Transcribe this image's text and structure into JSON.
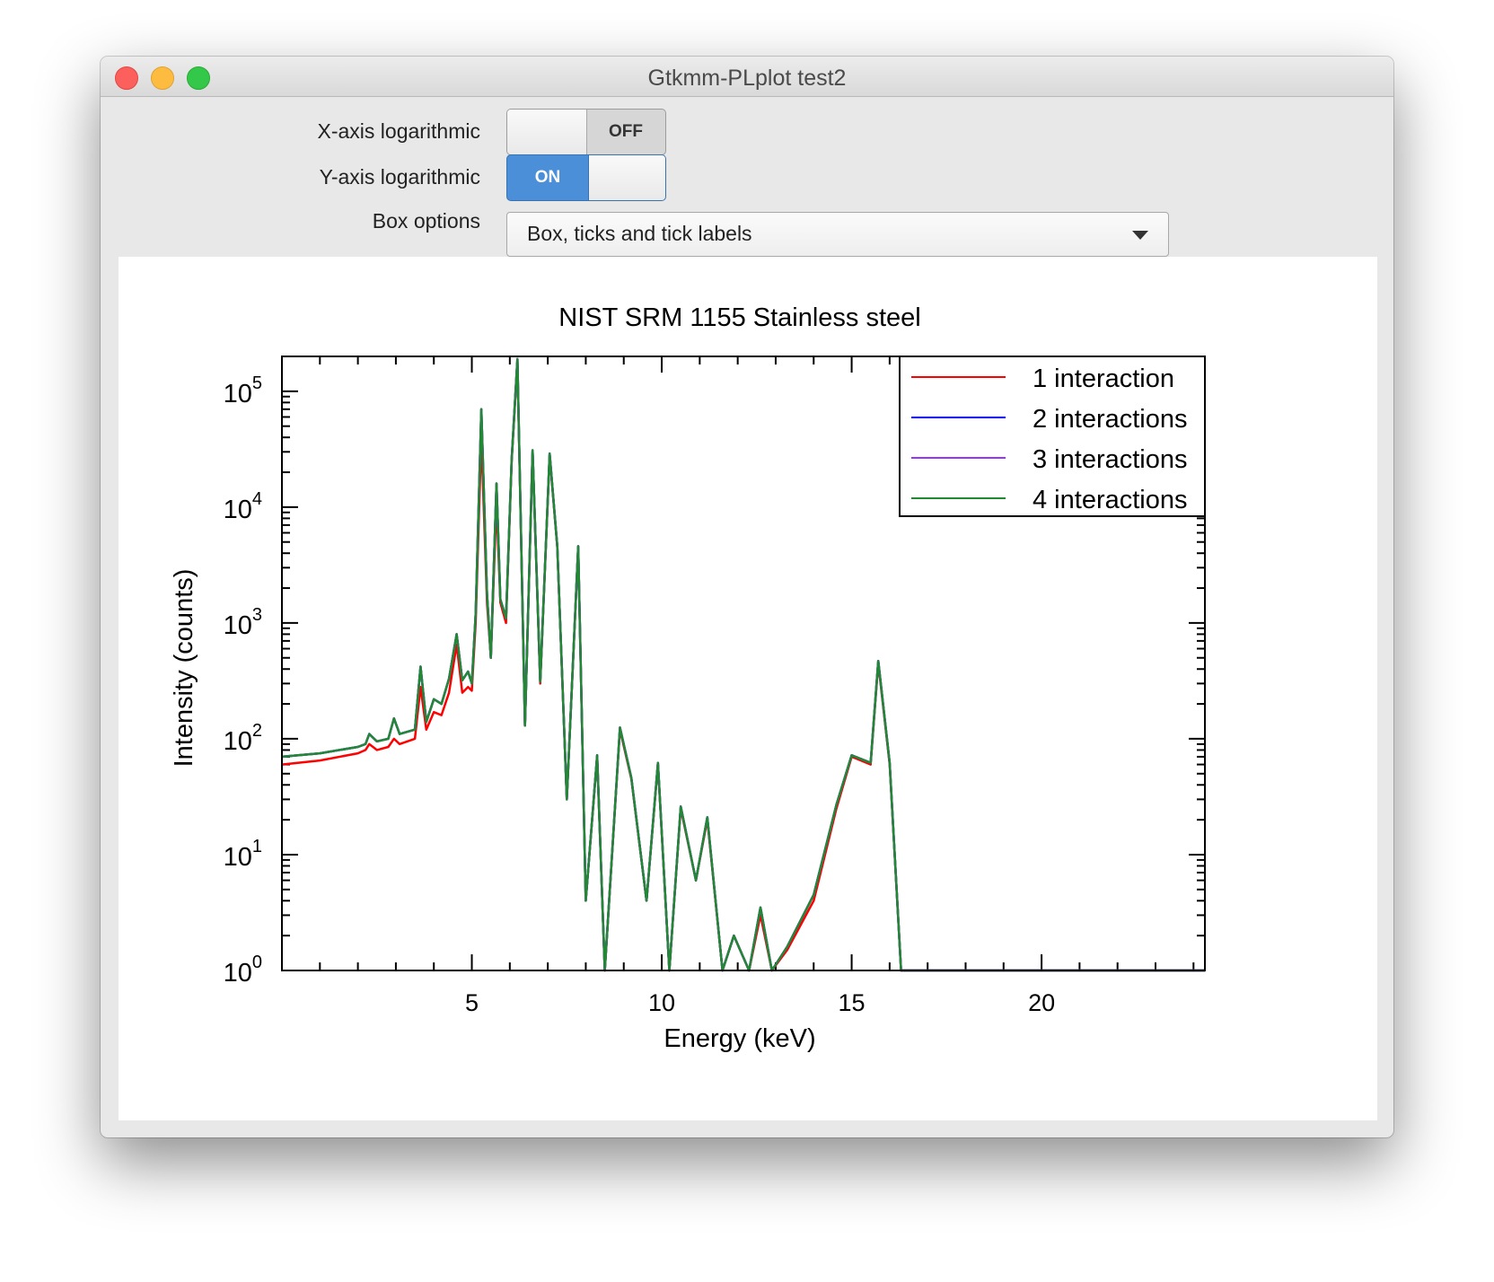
{
  "window": {
    "title": "Gtkmm-PLplot test2"
  },
  "controls": {
    "x_log": {
      "label": "X-axis logarithmic",
      "state": "OFF"
    },
    "y_log": {
      "label": "Y-axis logarithmic",
      "state": "ON"
    },
    "box_options": {
      "label": "Box options",
      "value": "Box, ticks and tick labels"
    }
  },
  "chart_data": {
    "type": "line",
    "title": "NIST SRM 1155 Stainless steel",
    "xlabel": "Energy (keV)",
    "ylabel": "Intensity (counts)",
    "xlim": [
      0,
      24.3
    ],
    "ylim": [
      1,
      200000
    ],
    "yscale": "log",
    "x_ticks": [
      5,
      10,
      15,
      20
    ],
    "y_ticks": [
      {
        "base": "10",
        "exp": "0",
        "value": 1
      },
      {
        "base": "10",
        "exp": "1",
        "value": 10
      },
      {
        "base": "10",
        "exp": "2",
        "value": 100
      },
      {
        "base": "10",
        "exp": "3",
        "value": 1000
      },
      {
        "base": "10",
        "exp": "4",
        "value": 10000
      },
      {
        "base": "10",
        "exp": "5",
        "value": 100000
      }
    ],
    "legend_position": "top-right",
    "series": [
      {
        "name": "1 interaction",
        "color": "#ff0000",
        "x": [
          0.0,
          1.0,
          2.0,
          2.2,
          2.3,
          2.5,
          2.8,
          2.95,
          3.1,
          3.5,
          3.65,
          3.8,
          4.0,
          4.2,
          4.4,
          4.6,
          4.75,
          4.9,
          5.0,
          5.1,
          5.25,
          5.4,
          5.5,
          5.65,
          5.75,
          5.9,
          6.05,
          6.2,
          6.4,
          6.6,
          6.8,
          7.05,
          7.25,
          7.5,
          7.8,
          8.0,
          8.3,
          8.5,
          8.9,
          9.2,
          9.6,
          9.9,
          10.2,
          10.5,
          10.9,
          11.2,
          11.6,
          11.9,
          12.3,
          12.6,
          12.9,
          13.3,
          14.0,
          14.6,
          15.0,
          15.5,
          15.7,
          16.0,
          16.3,
          16.5,
          24.3
        ],
        "y": [
          60,
          65,
          75,
          80,
          90,
          80,
          85,
          100,
          90,
          100,
          280,
          120,
          170,
          160,
          250,
          650,
          250,
          280,
          260,
          1000,
          40000,
          1500,
          500,
          11000,
          1500,
          1000,
          25000,
          180000,
          130,
          30000,
          300,
          28000,
          4500,
          30,
          4500,
          4,
          70,
          1,
          120,
          45,
          4,
          60,
          1,
          25,
          6,
          20,
          1,
          2,
          1,
          3,
          1,
          1.5,
          4,
          25,
          70,
          60,
          450,
          60,
          1,
          1,
          1
        ]
      },
      {
        "name": "2 interactions",
        "color": "#0000ff",
        "x": [
          0.0,
          1.0,
          2.0,
          2.2,
          2.3,
          2.5,
          2.8,
          2.95,
          3.1,
          3.5,
          3.65,
          3.8,
          4.0,
          4.2,
          4.4,
          4.6,
          4.75,
          4.9,
          5.0,
          5.1,
          5.25,
          5.4,
          5.5,
          5.65,
          5.75,
          5.9,
          6.05,
          6.2,
          6.4,
          6.6,
          6.8,
          7.05,
          7.25,
          7.5,
          7.8,
          8.0,
          8.3,
          8.5,
          8.9,
          9.2,
          9.6,
          9.9,
          10.2,
          10.5,
          10.9,
          11.2,
          11.6,
          11.9,
          12.3,
          12.6,
          12.9,
          13.3,
          14.0,
          14.6,
          15.0,
          15.5,
          15.7,
          16.0,
          16.3,
          16.5,
          24.3
        ],
        "y": [
          70,
          75,
          85,
          90,
          110,
          95,
          100,
          150,
          110,
          120,
          420,
          140,
          220,
          200,
          330,
          800,
          320,
          380,
          300,
          1200,
          70000,
          1800,
          500,
          16000,
          1600,
          1100,
          26000,
          190000,
          130,
          31000,
          310,
          29000,
          4600,
          30,
          4600,
          4,
          72,
          1,
          125,
          46,
          4,
          62,
          1,
          26,
          6,
          21,
          1,
          2,
          1,
          3.5,
          1,
          1.6,
          4.5,
          27,
          72,
          62,
          470,
          62,
          1,
          1,
          1
        ]
      },
      {
        "name": "3 interactions",
        "color": "#9933ff",
        "x": [
          0.0,
          1.0,
          2.0,
          2.2,
          2.3,
          2.5,
          2.8,
          2.95,
          3.1,
          3.5,
          3.65,
          3.8,
          4.0,
          4.2,
          4.4,
          4.6,
          4.75,
          4.9,
          5.0,
          5.1,
          5.25,
          5.4,
          5.5,
          5.65,
          5.75,
          5.9,
          6.05,
          6.2,
          6.4,
          6.6,
          6.8,
          7.05,
          7.25,
          7.5,
          7.8,
          8.0,
          8.3,
          8.5,
          8.9,
          9.2,
          9.6,
          9.9,
          10.2,
          10.5,
          10.9,
          11.2,
          11.6,
          11.9,
          12.3,
          12.6,
          12.9,
          13.3,
          14.0,
          14.6,
          15.0,
          15.5,
          15.7,
          16.0,
          16.3,
          16.5,
          24.3
        ],
        "y": [
          70,
          75,
          85,
          90,
          110,
          95,
          100,
          150,
          110,
          120,
          420,
          140,
          220,
          200,
          330,
          800,
          320,
          380,
          300,
          1200,
          70000,
          1800,
          500,
          16000,
          1600,
          1100,
          26000,
          190000,
          130,
          31000,
          310,
          29000,
          4600,
          30,
          4600,
          4,
          72,
          1,
          125,
          46,
          4,
          62,
          1,
          26,
          6,
          21,
          1,
          2,
          1,
          3.5,
          1,
          1.6,
          4.5,
          27,
          72,
          62,
          470,
          62,
          1,
          1,
          1
        ]
      },
      {
        "name": "4 interactions",
        "color": "#228833",
        "x": [
          0.0,
          1.0,
          2.0,
          2.2,
          2.3,
          2.5,
          2.8,
          2.95,
          3.1,
          3.5,
          3.65,
          3.8,
          4.0,
          4.2,
          4.4,
          4.6,
          4.75,
          4.9,
          5.0,
          5.1,
          5.25,
          5.4,
          5.5,
          5.65,
          5.75,
          5.9,
          6.05,
          6.2,
          6.4,
          6.6,
          6.8,
          7.05,
          7.25,
          7.5,
          7.8,
          8.0,
          8.3,
          8.5,
          8.9,
          9.2,
          9.6,
          9.9,
          10.2,
          10.5,
          10.9,
          11.2,
          11.6,
          11.9,
          12.3,
          12.6,
          12.9,
          13.3,
          14.0,
          14.6,
          15.0,
          15.5,
          15.7,
          16.0,
          16.3,
          16.5,
          24.3
        ],
        "y": [
          70,
          75,
          85,
          90,
          110,
          95,
          100,
          150,
          110,
          120,
          420,
          140,
          220,
          200,
          330,
          800,
          320,
          380,
          300,
          1200,
          70000,
          1800,
          500,
          16000,
          1600,
          1100,
          26000,
          190000,
          130,
          31000,
          310,
          29000,
          4600,
          30,
          4600,
          4,
          72,
          1,
          125,
          46,
          4,
          62,
          1,
          26,
          6,
          21,
          1,
          2,
          1,
          3.5,
          1,
          1.6,
          4.5,
          27,
          72,
          62,
          470,
          62,
          1,
          1,
          1
        ]
      }
    ]
  }
}
